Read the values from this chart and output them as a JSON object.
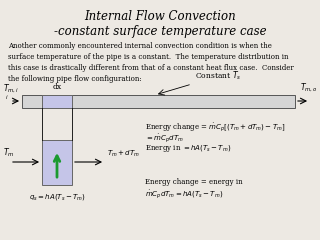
{
  "title": "Internal Flow Convection\n-constant surface temperature case",
  "title_fontsize": 8.5,
  "body_text": "Another commonly encountered internal convection condition is when the\nsurface temperature of the pipe is a constant.  The temperature distribution in\nthis case is drastically different from that of a constant heat flux case.  Consider\nthe following pipe flow configuration:",
  "body_fontsize": 5.0,
  "bg_color": "#ede9e3",
  "pipe_color": "#d5d5d5",
  "dx_color": "#c5c5e8",
  "small_rect_color": "#c5c5e8",
  "arrow_color": "#1a9a30",
  "eq1": "Energy change = $\\dot{m}C_p[(T_m + dT_m) - T_m]$",
  "eq2": "$= \\dot{m}C_p dT_m$",
  "eq3": "Energy in $= hA(T_s - T_m)$",
  "eq4": "Energy change = energy in",
  "eq5": "$\\dot{m}C_p dT_m = hA(T_s - T_m)$",
  "eq_fontsize": 5.0,
  "label_fontsize": 5.5
}
